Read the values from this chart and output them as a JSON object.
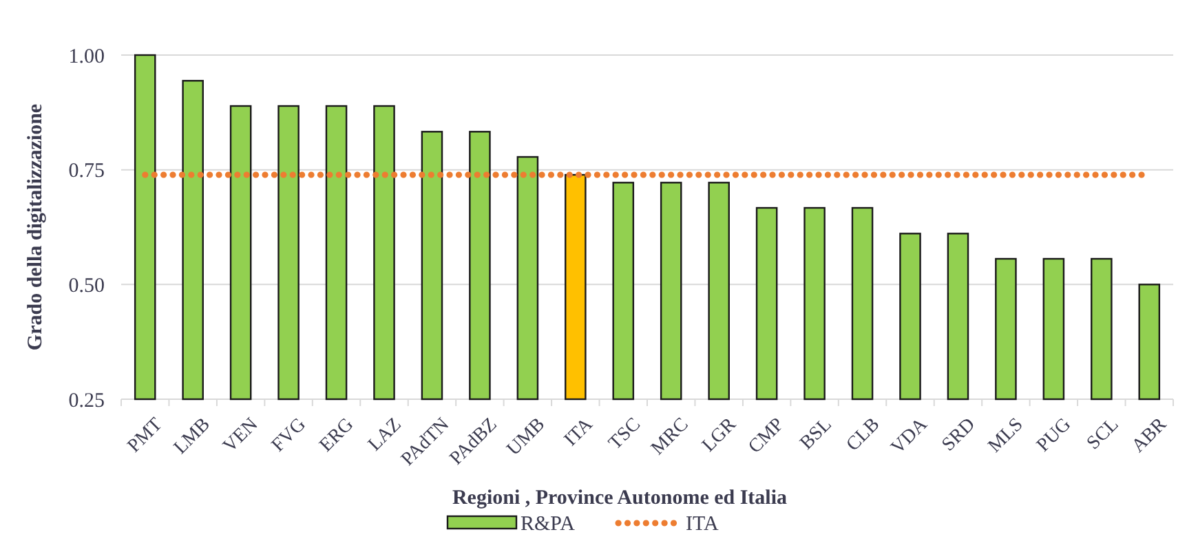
{
  "chart_data": {
    "type": "bar",
    "xlabel": "Regioni , Province Autonome ed Italia",
    "ylabel": "Grado della digitalizzazione",
    "categories": [
      "PMT",
      "LMB",
      "VEN",
      "FVG",
      "ERG",
      "LAZ",
      "PAdTN",
      "PAdBZ",
      "UMB",
      "ITA",
      "TSC",
      "MRC",
      "LGR",
      "CMP",
      "BSL",
      "CLB",
      "VDA",
      "SRD",
      "MLS",
      "PUG",
      "SCL",
      "ABR"
    ],
    "series": [
      {
        "name": "R&PA",
        "color": "#92d050",
        "colors": [
          "#92d050",
          "#92d050",
          "#92d050",
          "#92d050",
          "#92d050",
          "#92d050",
          "#92d050",
          "#92d050",
          "#92d050",
          "#ffc000",
          "#92d050",
          "#92d050",
          "#92d050",
          "#92d050",
          "#92d050",
          "#92d050",
          "#92d050",
          "#92d050",
          "#92d050",
          "#92d050",
          "#92d050",
          "#92d050"
        ],
        "values": [
          1.0,
          0.944,
          0.889,
          0.889,
          0.889,
          0.889,
          0.833,
          0.833,
          0.778,
          0.739,
          0.722,
          0.722,
          0.722,
          0.667,
          0.667,
          0.667,
          0.611,
          0.611,
          0.556,
          0.556,
          0.556,
          0.5
        ]
      },
      {
        "name": "ITA",
        "type": "line",
        "color": "#ed7d31",
        "line_style": "dotted",
        "marker": "none",
        "values": [
          0.739,
          0.739,
          0.739,
          0.739,
          0.739,
          0.739,
          0.739,
          0.739,
          0.739,
          0.739,
          0.739,
          0.739,
          0.739,
          0.739,
          0.739,
          0.739,
          0.739,
          0.739,
          0.739,
          0.739,
          0.739,
          0.739
        ]
      }
    ],
    "ylim": [
      0.25,
      1.0
    ],
    "yticks": [
      {
        "value": 0.25,
        "label": "0.25"
      },
      {
        "value": 0.5,
        "label": "0.50"
      },
      {
        "value": 0.75,
        "label": "0.75"
      },
      {
        "value": 1.0,
        "label": "1.00"
      }
    ],
    "grid": "y",
    "legend": "bottom"
  }
}
